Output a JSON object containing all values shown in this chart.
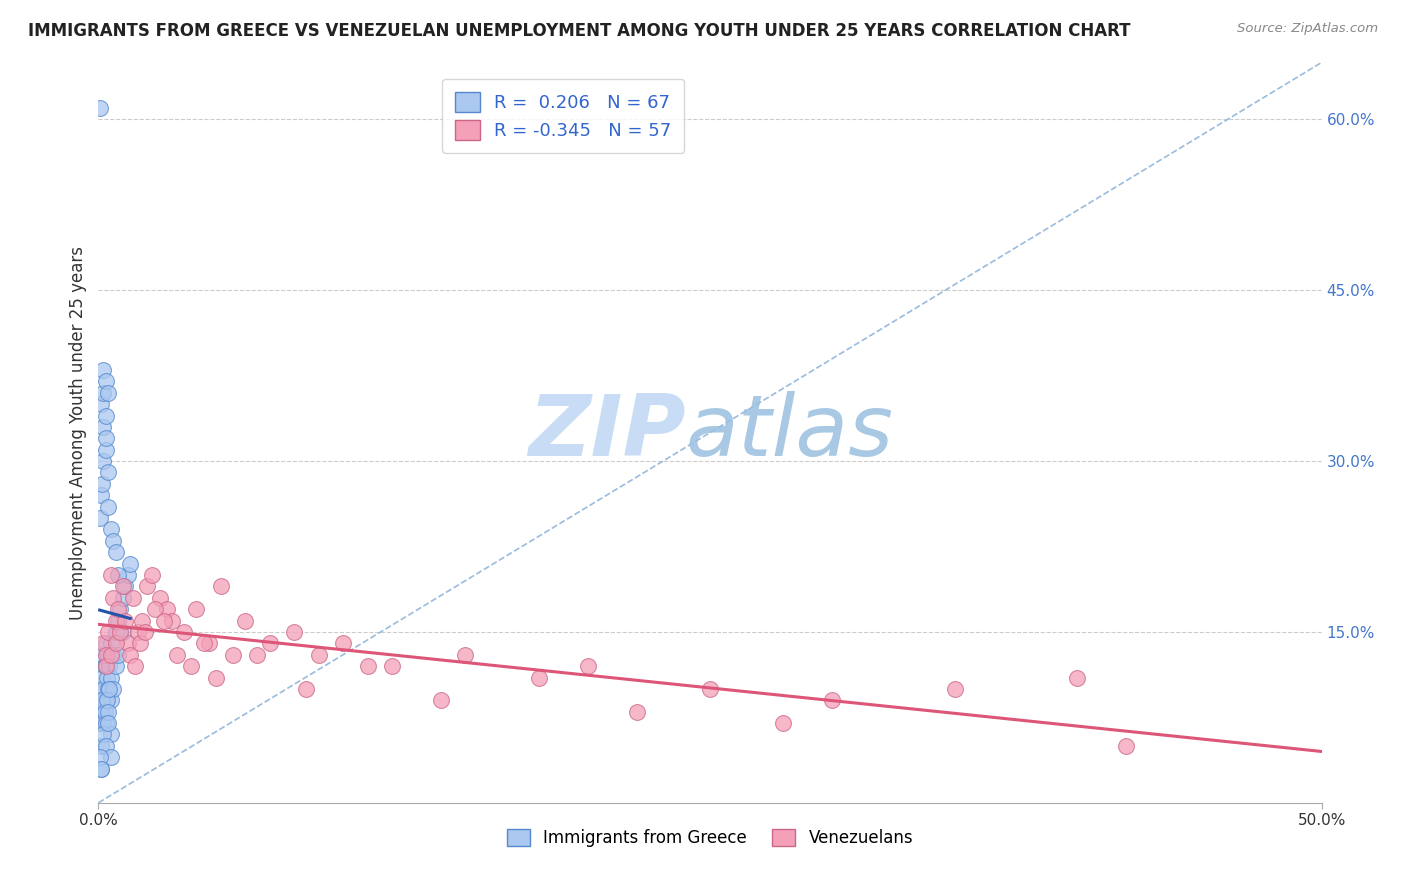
{
  "title": "IMMIGRANTS FROM GREECE VS VENEZUELAN UNEMPLOYMENT AMONG YOUTH UNDER 25 YEARS CORRELATION CHART",
  "source": "Source: ZipAtlas.com",
  "ylabel": "Unemployment Among Youth under 25 years",
  "xlim": [
    0.0,
    0.5
  ],
  "ylim": [
    0.0,
    0.65
  ],
  "xtick_positions": [
    0.0,
    0.5
  ],
  "xtick_labels": [
    "0.0%",
    "50.0%"
  ],
  "yticks_right": [
    0.15,
    0.3,
    0.45,
    0.6
  ],
  "ytick_labels_right": [
    "15.0%",
    "30.0%",
    "45.0%",
    "60.0%"
  ],
  "grid_color": "#cccccc",
  "background_color": "#ffffff",
  "blue_color": "#aac8f0",
  "pink_color": "#f4a0b8",
  "blue_edge_color": "#5588cc",
  "pink_edge_color": "#cc6688",
  "blue_line_color": "#2255aa",
  "pink_line_color": "#dd5577",
  "diag_color": "#99bbdd",
  "blue_scatter_x": [
    0.0005,
    0.001,
    0.001,
    0.0015,
    0.0015,
    0.002,
    0.002,
    0.0025,
    0.003,
    0.003,
    0.003,
    0.0035,
    0.004,
    0.004,
    0.0045,
    0.005,
    0.005,
    0.005,
    0.006,
    0.006,
    0.007,
    0.007,
    0.008,
    0.008,
    0.009,
    0.01,
    0.01,
    0.011,
    0.012,
    0.013,
    0.0005,
    0.001,
    0.0015,
    0.002,
    0.0025,
    0.003,
    0.0035,
    0.004,
    0.0045,
    0.005,
    0.0005,
    0.001,
    0.0015,
    0.002,
    0.003,
    0.004,
    0.005,
    0.006,
    0.007,
    0.008,
    0.001,
    0.002,
    0.003,
    0.004,
    0.005,
    0.002,
    0.003,
    0.004,
    0.001,
    0.002,
    0.003,
    0.002,
    0.003,
    0.004,
    0.001,
    0.0005,
    0.001
  ],
  "blue_scatter_y": [
    0.61,
    0.1,
    0.09,
    0.11,
    0.08,
    0.13,
    0.1,
    0.12,
    0.14,
    0.12,
    0.09,
    0.11,
    0.13,
    0.1,
    0.12,
    0.14,
    0.11,
    0.09,
    0.13,
    0.1,
    0.15,
    0.12,
    0.16,
    0.13,
    0.17,
    0.18,
    0.15,
    0.19,
    0.2,
    0.21,
    0.07,
    0.08,
    0.09,
    0.07,
    0.08,
    0.07,
    0.09,
    0.08,
    0.1,
    0.06,
    0.25,
    0.27,
    0.28,
    0.3,
    0.31,
    0.26,
    0.24,
    0.23,
    0.22,
    0.2,
    0.05,
    0.06,
    0.05,
    0.07,
    0.04,
    0.33,
    0.32,
    0.29,
    0.35,
    0.36,
    0.34,
    0.38,
    0.37,
    0.36,
    0.03,
    0.04,
    0.03
  ],
  "pink_scatter_x": [
    0.002,
    0.003,
    0.004,
    0.005,
    0.006,
    0.007,
    0.008,
    0.01,
    0.012,
    0.014,
    0.016,
    0.018,
    0.02,
    0.022,
    0.025,
    0.028,
    0.03,
    0.035,
    0.04,
    0.045,
    0.05,
    0.055,
    0.06,
    0.07,
    0.08,
    0.09,
    0.1,
    0.12,
    0.15,
    0.18,
    0.2,
    0.25,
    0.3,
    0.35,
    0.4,
    0.003,
    0.005,
    0.007,
    0.009,
    0.011,
    0.013,
    0.015,
    0.017,
    0.019,
    0.023,
    0.027,
    0.032,
    0.038,
    0.043,
    0.048,
    0.065,
    0.085,
    0.11,
    0.14,
    0.22,
    0.28,
    0.42
  ],
  "pink_scatter_y": [
    0.14,
    0.13,
    0.15,
    0.2,
    0.18,
    0.16,
    0.17,
    0.19,
    0.14,
    0.18,
    0.15,
    0.16,
    0.19,
    0.2,
    0.18,
    0.17,
    0.16,
    0.15,
    0.17,
    0.14,
    0.19,
    0.13,
    0.16,
    0.14,
    0.15,
    0.13,
    0.14,
    0.12,
    0.13,
    0.11,
    0.12,
    0.1,
    0.09,
    0.1,
    0.11,
    0.12,
    0.13,
    0.14,
    0.15,
    0.16,
    0.13,
    0.12,
    0.14,
    0.15,
    0.17,
    0.16,
    0.13,
    0.12,
    0.14,
    0.11,
    0.13,
    0.1,
    0.12,
    0.09,
    0.08,
    0.07,
    0.05
  ]
}
